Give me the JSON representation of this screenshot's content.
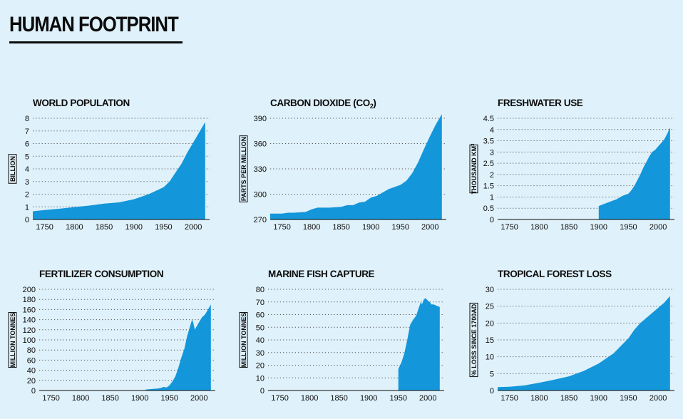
{
  "page": {
    "title": "HUMAN FOOTPRINT"
  },
  "colors": {
    "area": "#1396da",
    "background": "#dff1fa",
    "text": "#0b0b0b",
    "grid": "#555555"
  },
  "chart_data": [
    {
      "type": "area",
      "title": "WORLD POPULATION",
      "ylabel": "BILLION",
      "xlim": [
        1730,
        2025
      ],
      "ylim": [
        0,
        8
      ],
      "xticks": [
        1750,
        1800,
        1850,
        1900,
        1950,
        2000
      ],
      "yticks": [
        0,
        1,
        2,
        3,
        4,
        5,
        6,
        7,
        8
      ],
      "ytick_labels": [
        "0",
        "1",
        "2",
        "3",
        "4",
        "5",
        "6",
        "7",
        "8"
      ],
      "grid": true,
      "x": [
        1730,
        1750,
        1775,
        1800,
        1825,
        1850,
        1875,
        1900,
        1925,
        1950,
        1960,
        1970,
        1980,
        1990,
        2000,
        2010,
        2020
      ],
      "y": [
        0.65,
        0.75,
        0.85,
        0.98,
        1.1,
        1.25,
        1.35,
        1.6,
        2.0,
        2.55,
        3.0,
        3.7,
        4.4,
        5.3,
        6.1,
        6.9,
        7.7
      ]
    },
    {
      "type": "area",
      "title": "CARBON DIOXIDE (CO",
      "title_sub": "2",
      "title_suffix": ")",
      "ylabel": "PARTS PER MILLION",
      "xlim": [
        1730,
        2025
      ],
      "ylim": [
        270,
        390
      ],
      "xticks": [
        1750,
        1800,
        1850,
        1900,
        1950,
        2000
      ],
      "yticks": [
        270,
        300,
        330,
        360,
        390
      ],
      "ytick_labels": [
        "270",
        "300",
        "330",
        "360",
        "390"
      ],
      "grid": true,
      "x": [
        1730,
        1750,
        1760,
        1770,
        1790,
        1800,
        1810,
        1830,
        1850,
        1860,
        1870,
        1880,
        1890,
        1900,
        1910,
        1920,
        1930,
        1950,
        1960,
        1970,
        1980,
        1990,
        2000,
        2010,
        2020
      ],
      "y": [
        277,
        277,
        278,
        278,
        279,
        282,
        284,
        284,
        285,
        287,
        287,
        290,
        291,
        296,
        298,
        302,
        306,
        311,
        316,
        325,
        338,
        354,
        369,
        383,
        395
      ]
    },
    {
      "type": "area",
      "title": "FRESHWATER USE",
      "ylabel": "THOUSAND KM",
      "ylabel_sup": "3",
      "xlim": [
        1730,
        2025
      ],
      "ylim": [
        0,
        4.5
      ],
      "xticks": [
        1750,
        1800,
        1850,
        1900,
        1950,
        2000
      ],
      "yticks": [
        0,
        0.5,
        1,
        1.5,
        2,
        2.5,
        3,
        3.5,
        4,
        4.5
      ],
      "ytick_labels": [
        "0",
        "0.5",
        "1",
        "1.5",
        "2",
        "2.5",
        "3",
        "3.5",
        "4",
        "4.5"
      ],
      "grid": true,
      "x": [
        1900,
        1910,
        1920,
        1930,
        1940,
        1950,
        1955,
        1960,
        1965,
        1970,
        1975,
        1980,
        1985,
        1990,
        1995,
        2000,
        2005,
        2010,
        2015,
        2020
      ],
      "y": [
        0.6,
        0.7,
        0.8,
        0.9,
        1.05,
        1.15,
        1.3,
        1.5,
        1.75,
        2.0,
        2.3,
        2.55,
        2.8,
        3.0,
        3.1,
        3.25,
        3.4,
        3.55,
        3.8,
        4.1
      ]
    },
    {
      "type": "area",
      "title": "FERTILIZER CONSUMPTION",
      "ylabel": "MILLION TONNES",
      "xlim": [
        1730,
        2025
      ],
      "ylim": [
        0,
        200
      ],
      "xticks": [
        1750,
        1800,
        1850,
        1900,
        1950,
        2000
      ],
      "yticks": [
        0,
        20,
        40,
        60,
        80,
        100,
        120,
        140,
        160,
        180,
        200
      ],
      "ytick_labels": [
        "0",
        "20",
        "40",
        "60",
        "80",
        "100",
        "120",
        "140",
        "160",
        "180",
        "200"
      ],
      "grid": true,
      "x": [
        1910,
        1920,
        1930,
        1935,
        1940,
        1945,
        1950,
        1955,
        1960,
        1965,
        1970,
        1975,
        1980,
        1985,
        1988,
        1990,
        1993,
        1995,
        2000,
        2005,
        2010,
        2015,
        2020
      ],
      "y": [
        2,
        3,
        4,
        5,
        7,
        6,
        10,
        18,
        28,
        45,
        65,
        82,
        108,
        128,
        140,
        135,
        120,
        125,
        135,
        145,
        150,
        160,
        170
      ]
    },
    {
      "type": "area",
      "title": "MARINE FISH CAPTURE",
      "ylabel": "MILLION TONNES",
      "xlim": [
        1730,
        2025
      ],
      "ylim": [
        0,
        80
      ],
      "xticks": [
        1750,
        1800,
        1850,
        1900,
        1950,
        2000
      ],
      "yticks": [
        0,
        10,
        20,
        30,
        40,
        50,
        60,
        70,
        80
      ],
      "ytick_labels": [
        "0",
        "10",
        "20",
        "30",
        "40",
        "50",
        "60",
        "70",
        "80"
      ],
      "grid": true,
      "x": [
        1950,
        1955,
        1960,
        1965,
        1970,
        1975,
        1980,
        1985,
        1988,
        1990,
        1993,
        1996,
        2000,
        2003,
        2006,
        2010,
        2015,
        2020
      ],
      "y": [
        17,
        22,
        29,
        40,
        52,
        56,
        59,
        66,
        70,
        68,
        72,
        73,
        71,
        70,
        68,
        68,
        67,
        66
      ]
    },
    {
      "type": "area",
      "title": "TROPICAL FOREST LOSS",
      "ylabel": "% LOSS SINCE 1700AD",
      "xlim": [
        1730,
        2025
      ],
      "ylim": [
        0,
        30
      ],
      "xticks": [
        1750,
        1800,
        1850,
        1900,
        1950,
        2000
      ],
      "yticks": [
        0,
        5,
        10,
        15,
        20,
        25,
        30
      ],
      "ytick_labels": [
        "0",
        "5",
        "10",
        "15",
        "20",
        "25",
        "30"
      ],
      "grid": true,
      "x": [
        1730,
        1750,
        1775,
        1800,
        1825,
        1850,
        1875,
        1900,
        1925,
        1950,
        1960,
        1970,
        1980,
        1990,
        2000,
        2010,
        2020
      ],
      "y": [
        1.0,
        1.1,
        1.5,
        2.3,
        3.2,
        4.2,
        5.8,
        8.0,
        11.0,
        15.5,
        18.0,
        20.0,
        21.5,
        23.0,
        24.5,
        26.0,
        28.0
      ]
    }
  ]
}
